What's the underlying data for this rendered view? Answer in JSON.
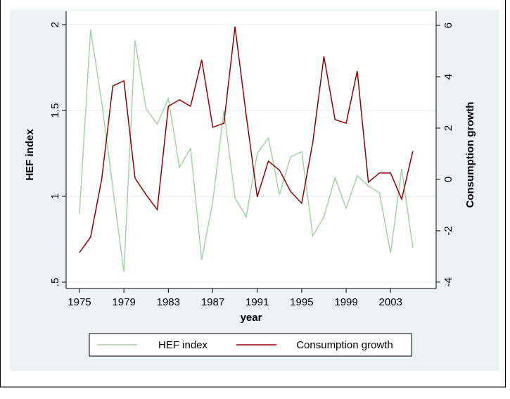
{
  "chart_data": {
    "type": "line",
    "xlabel": "year",
    "ylabel": "HEF index",
    "y2label": "Consumption growth",
    "x": [
      1975,
      1976,
      1977,
      1978,
      1979,
      1980,
      1981,
      1982,
      1983,
      1984,
      1985,
      1986,
      1987,
      1988,
      1989,
      1990,
      1991,
      1992,
      1993,
      1994,
      1995,
      1996,
      1997,
      1998,
      1999,
      2000,
      2001,
      2002,
      2003,
      2004,
      2005
    ],
    "series": [
      {
        "name": "HEF index",
        "color": "#a3d3a3",
        "values": [
          0.9,
          1.97,
          1.55,
          1.05,
          0.56,
          1.91,
          1.51,
          1.42,
          1.57,
          1.17,
          1.28,
          0.63,
          0.97,
          1.5,
          0.99,
          0.88,
          1.25,
          1.34,
          1.01,
          1.23,
          1.26,
          0.77,
          0.88,
          1.11,
          0.93,
          1.12,
          1.06,
          1.02,
          0.67,
          1.16,
          0.7
        ]
      },
      {
        "name": "Consumption growth",
        "color": "#8f0000",
        "axis": "y2",
        "values": [
          -2.85,
          -2.25,
          0,
          3.64,
          3.84,
          0.05,
          -0.6,
          -1.18,
          2.85,
          3.1,
          2.85,
          4.66,
          2.03,
          2.19,
          5.95,
          2.52,
          -0.68,
          0.71,
          0.36,
          -0.47,
          -0.93,
          1.45,
          4.79,
          2.33,
          2.19,
          4.22,
          -0.11,
          0.25,
          0.25,
          -0.77,
          1.1
        ]
      }
    ],
    "xlim": [
      1973.8,
      2007.1
    ],
    "xticks": [
      1975,
      1979,
      1983,
      1987,
      1991,
      1995,
      1999,
      2003
    ],
    "ylim": [
      0.463,
      2.078
    ],
    "yticks": [
      {
        "value": 0.5,
        "label": ".5"
      },
      1,
      1.5,
      2
    ],
    "y2lim": [
      -4.25,
      6.55
    ],
    "y2ticks": [
      -4,
      -2,
      0,
      2,
      4,
      6
    ],
    "grid": true,
    "legend": "bottom"
  }
}
